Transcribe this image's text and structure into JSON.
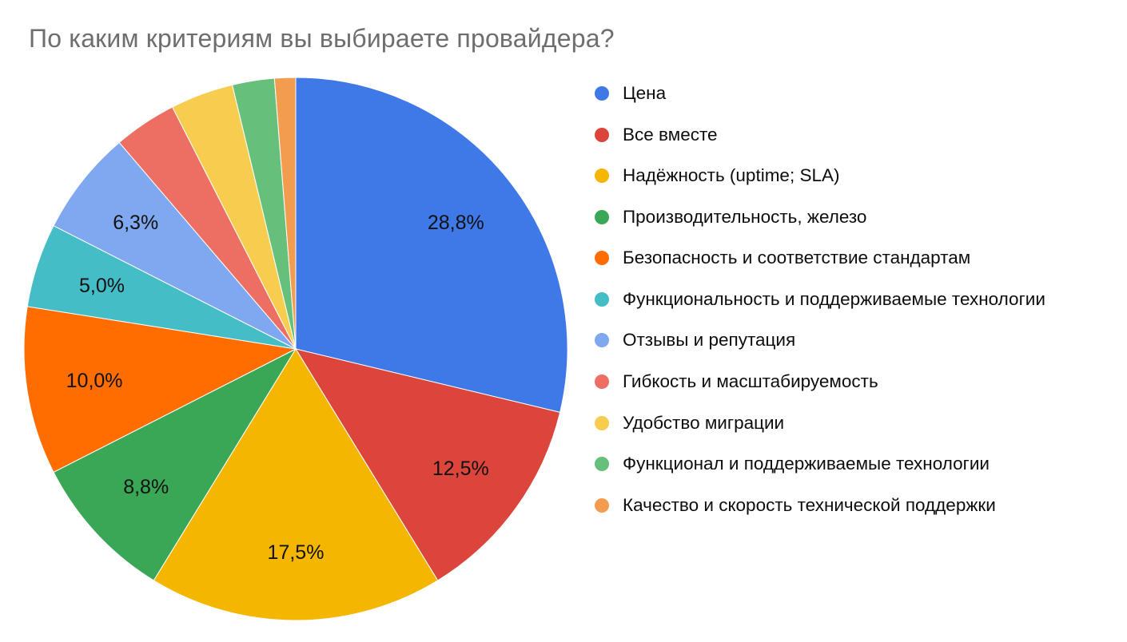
{
  "chart_data": {
    "type": "pie",
    "title": "По каким критериям вы выбираете провайдера?",
    "legend_position": "right",
    "direction": "clockwise",
    "start_angle_deg": 0,
    "slices": [
      {
        "label": "Цена",
        "value": 28.75,
        "display": "28,8%",
        "color": "#3E79E7"
      },
      {
        "label": "Все вместе",
        "value": 12.5,
        "display": "12,5%",
        "color": "#DB453C"
      },
      {
        "label": "Надёжность (uptime; SLA)",
        "value": 17.5,
        "display": "17,5%",
        "color": "#F5B600"
      },
      {
        "label": "Производительность, железо",
        "value": 8.75,
        "display": "8,8%",
        "color": "#3AA757"
      },
      {
        "label": "Безопасность и соответствие стандартам",
        "value": 10,
        "display": "10,0%",
        "color": "#FF6D00"
      },
      {
        "label": "Функциональность и поддерживаемые технологии",
        "value": 5,
        "display": "5,0%",
        "color": "#45BDC6"
      },
      {
        "label": "Отзывы и репутация",
        "value": 6.25,
        "display": "6,3%",
        "color": "#7FA8F0"
      },
      {
        "label": "Гибкость и масштабируемость",
        "value": 3.75,
        "display": "",
        "color": "#ED6F63"
      },
      {
        "label": "Удобство миграции",
        "value": 3.75,
        "display": "",
        "color": "#F6CD4E"
      },
      {
        "label": "Функционал и поддерживаемые технологии",
        "value": 2.5,
        "display": "",
        "color": "#66BF7B"
      },
      {
        "label": "Качество и скорость технической поддержки",
        "value": 1.25,
        "display": "",
        "color": "#F29C4F"
      }
    ]
  }
}
